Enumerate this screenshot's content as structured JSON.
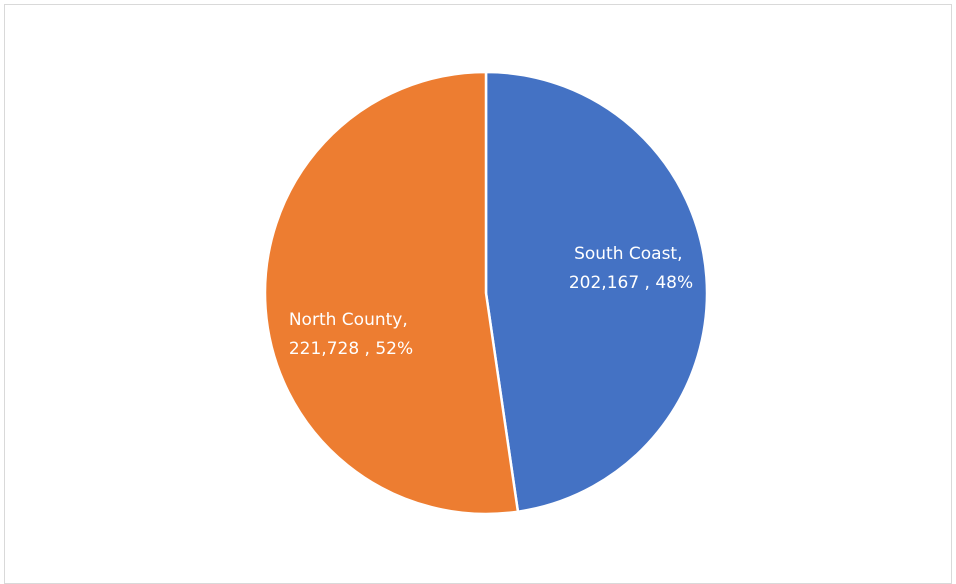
{
  "chart_data": {
    "type": "pie",
    "title": "",
    "categories": [
      "South Coast",
      "North County"
    ],
    "values": [
      202167,
      221728
    ],
    "percentages": [
      48,
      52
    ],
    "colors": [
      "#4472c4",
      "#ed7d31"
    ],
    "labels": [
      {
        "line1": "South Coast,",
        "line2": "202,167 , 48%"
      },
      {
        "line1": "North County,",
        "line2": "221,728 , 52%"
      }
    ],
    "legend": "none",
    "start_angle": "12 o'clock",
    "direction": "clockwise"
  }
}
